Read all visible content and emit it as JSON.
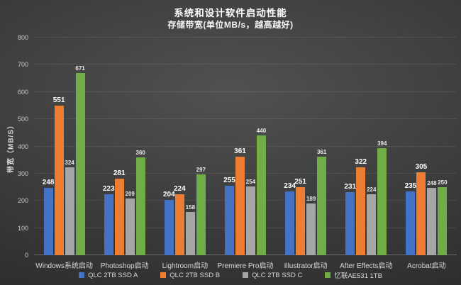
{
  "chart_data": {
    "type": "bar",
    "title": "系统和设计软件启动性能",
    "subtitle": "存储带宽(单位MB/s，越高越好)",
    "ylabel": "带宽（MB/S）",
    "xlabel": "",
    "ylim": [
      0,
      800
    ],
    "ytick_interval": 100,
    "yticks": [
      0,
      100,
      200,
      300,
      400,
      500,
      600,
      700,
      800
    ],
    "grid": true,
    "legend_position": "bottom",
    "background_theme": "dark-gradient",
    "categories": [
      "Windows系统启动",
      "Photoshop启动",
      "Lightroom启动",
      "Premiere Pro启动",
      "Illustrator启动",
      "After Effects启动",
      "Acrobat启动"
    ],
    "series": [
      {
        "name": "QLC 2TB SSD A",
        "color": "#4472C4",
        "values": [
          248,
          223,
          204,
          255,
          234,
          231,
          235
        ]
      },
      {
        "name": "QLC 2TB SSD B",
        "color": "#ED7D31",
        "values": [
          551,
          281,
          224,
          361,
          251,
          322,
          305
        ]
      },
      {
        "name": "QLC 2TB SSD C",
        "color": "#A6A6A6",
        "values": [
          324,
          209,
          158,
          254,
          189,
          224,
          248
        ]
      },
      {
        "name": "忆联AE531 1TB",
        "color": "#70AD47",
        "values": [
          671,
          360,
          297,
          440,
          361,
          394,
          250
        ]
      }
    ]
  }
}
